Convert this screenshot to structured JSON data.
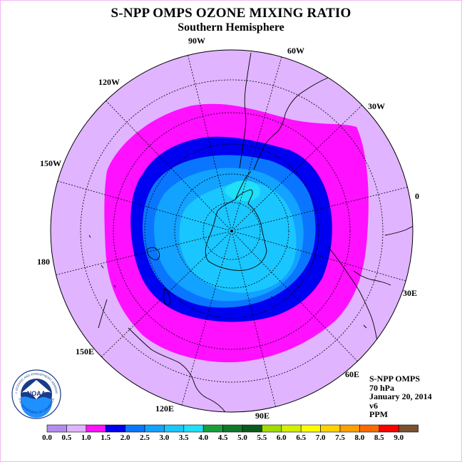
{
  "header": {
    "title": "S-NPP OMPS OZONE MIXING RATIO",
    "subtitle": "Southern Hemisphere"
  },
  "map": {
    "projection": "polar stereographic, south pole centred",
    "longitude_labels": [
      "90W",
      "60W",
      "30W",
      "0",
      "30E",
      "60E",
      "90E",
      "120E",
      "150E",
      "180",
      "150W",
      "120W"
    ],
    "fill_colors": {
      "outer": "#e0b4ff",
      "ring_1_0": "#ff10ff",
      "ring_1_5": "#0000f0",
      "ring_2_0": "#0a76ff",
      "ring_2_5": "#12a2ff",
      "ring_3_0": "#1ac6ff",
      "ring_3_5": "#1fe0f8"
    }
  },
  "info": {
    "instrument": "S-NPP OMPS",
    "level": "70 hPa",
    "date": "January 20, 2014",
    "version": "v6",
    "units": "PPM"
  },
  "logo": {
    "text": "NOAA",
    "ring_text": "NATIONAL OCEANIC AND ATMOSPHERIC ADMINISTRATION",
    "ring_text_bottom": "U.S. DEPARTMENT OF COMMERCE"
  },
  "legend": {
    "labels": [
      "0.0",
      "0.5",
      "1.0",
      "1.5",
      "2.0",
      "2.5",
      "3.0",
      "3.5",
      "4.0",
      "4.5",
      "5.0",
      "5.5",
      "6.0",
      "6.5",
      "7.0",
      "7.5",
      "8.0",
      "8.5",
      "9.0"
    ],
    "colors": [
      "#b48cf0",
      "#e0b4ff",
      "#ff10ff",
      "#0000f0",
      "#0a76ff",
      "#12a2ff",
      "#1ac6ff",
      "#1fe0f8",
      "#16a03c",
      "#0f7a2a",
      "#0b5a1c",
      "#a0dc00",
      "#d2f000",
      "#ffff00",
      "#ffd200",
      "#ffa000",
      "#ff6a00",
      "#ff0000",
      "#7a5030"
    ]
  }
}
